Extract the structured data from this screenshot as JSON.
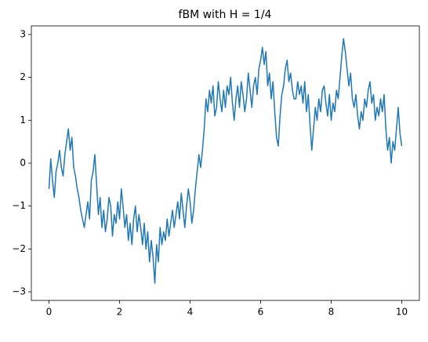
{
  "chart_data": {
    "type": "line",
    "title": "fBM with H = 1/4",
    "x": [
      0,
      0.05,
      0.1,
      0.15,
      0.2,
      0.25,
      0.3,
      0.35,
      0.4,
      0.45,
      0.5,
      0.55,
      0.6,
      0.65,
      0.7,
      0.75,
      0.8,
      0.85,
      0.9,
      0.95,
      1,
      1.05,
      1.1,
      1.15,
      1.2,
      1.25,
      1.3,
      1.35,
      1.4,
      1.45,
      1.5,
      1.55,
      1.6,
      1.65,
      1.7,
      1.75,
      1.8,
      1.85,
      1.9,
      1.95,
      2,
      2.05,
      2.1,
      2.15,
      2.2,
      2.25,
      2.3,
      2.35,
      2.4,
      2.45,
      2.5,
      2.55,
      2.6,
      2.65,
      2.7,
      2.75,
      2.8,
      2.85,
      2.9,
      2.95,
      3,
      3.05,
      3.1,
      3.15,
      3.2,
      3.25,
      3.3,
      3.35,
      3.4,
      3.45,
      3.5,
      3.55,
      3.6,
      3.65,
      3.7,
      3.75,
      3.8,
      3.85,
      3.9,
      3.95,
      4,
      4.05,
      4.1,
      4.15,
      4.2,
      4.25,
      4.3,
      4.35,
      4.4,
      4.45,
      4.5,
      4.55,
      4.6,
      4.65,
      4.7,
      4.75,
      4.8,
      4.85,
      4.9,
      4.95,
      5,
      5.05,
      5.1,
      5.15,
      5.2,
      5.25,
      5.3,
      5.35,
      5.4,
      5.45,
      5.5,
      5.55,
      5.6,
      5.65,
      5.7,
      5.75,
      5.8,
      5.85,
      5.9,
      5.95,
      6,
      6.05,
      6.1,
      6.15,
      6.2,
      6.25,
      6.3,
      6.35,
      6.4,
      6.45,
      6.5,
      6.55,
      6.6,
      6.65,
      6.7,
      6.75,
      6.8,
      6.85,
      6.9,
      6.95,
      7,
      7.05,
      7.1,
      7.15,
      7.2,
      7.25,
      7.3,
      7.35,
      7.4,
      7.45,
      7.5,
      7.55,
      7.6,
      7.65,
      7.7,
      7.75,
      7.8,
      7.85,
      7.9,
      7.95,
      8,
      8.05,
      8.1,
      8.15,
      8.2,
      8.25,
      8.3,
      8.35,
      8.4,
      8.45,
      8.5,
      8.55,
      8.6,
      8.65,
      8.7,
      8.75,
      8.8,
      8.85,
      8.9,
      8.95,
      9,
      9.05,
      9.1,
      9.15,
      9.2,
      9.25,
      9.3,
      9.35,
      9.4,
      9.45,
      9.5,
      9.55,
      9.6,
      9.65,
      9.7,
      9.75,
      9.8,
      9.85,
      9.9,
      9.95,
      10
    ],
    "series": [
      {
        "color": "#1f77b4",
        "values": [
          -0.6,
          0.1,
          -0.4,
          -0.8,
          -0.2,
          0.0,
          0.3,
          -0.1,
          -0.3,
          0.2,
          0.5,
          0.8,
          0.3,
          0.6,
          -0.1,
          -0.3,
          -0.6,
          -0.8,
          -1.1,
          -1.3,
          -1.5,
          -1.2,
          -0.9,
          -1.3,
          -0.4,
          -0.2,
          0.2,
          -0.5,
          -1.2,
          -0.8,
          -1.5,
          -1.1,
          -1.6,
          -1.3,
          -0.8,
          -1.0,
          -1.7,
          -1.2,
          -1.4,
          -0.9,
          -1.3,
          -0.6,
          -1.0,
          -1.5,
          -1.2,
          -1.8,
          -1.4,
          -1.9,
          -1.3,
          -1.0,
          -1.6,
          -1.2,
          -1.5,
          -1.9,
          -1.4,
          -2.0,
          -1.6,
          -2.3,
          -1.8,
          -2.2,
          -2.8,
          -1.9,
          -2.3,
          -1.5,
          -1.9,
          -1.6,
          -1.8,
          -1.3,
          -1.7,
          -1.4,
          -1.1,
          -1.5,
          -1.2,
          -0.9,
          -1.3,
          -0.7,
          -1.1,
          -1.5,
          -1.0,
          -0.6,
          -0.9,
          -1.4,
          -1.1,
          -0.6,
          -0.2,
          0.2,
          -0.1,
          0.3,
          0.8,
          1.5,
          1.2,
          1.7,
          1.4,
          1.8,
          1.1,
          1.3,
          1.9,
          1.5,
          1.2,
          1.7,
          1.3,
          1.8,
          1.6,
          2.0,
          1.4,
          1.0,
          1.5,
          1.8,
          1.3,
          1.9,
          1.6,
          1.2,
          1.5,
          2.1,
          1.7,
          1.3,
          1.8,
          2.0,
          1.6,
          2.2,
          2.4,
          2.7,
          2.3,
          2.6,
          1.8,
          2.1,
          1.5,
          1.9,
          1.2,
          0.6,
          0.4,
          1.1,
          1.6,
          1.8,
          2.2,
          2.4,
          1.9,
          2.1,
          1.7,
          1.5,
          1.5,
          1.9,
          1.6,
          1.8,
          1.4,
          1.9,
          1.2,
          1.6,
          0.9,
          0.3,
          0.8,
          1.3,
          1.0,
          1.5,
          1.2,
          1.7,
          1.8,
          1.4,
          1.1,
          1.6,
          1.0,
          1.4,
          1.2,
          1.7,
          1.5,
          2.0,
          2.5,
          2.9,
          2.6,
          2.2,
          1.8,
          2.1,
          1.5,
          1.3,
          1.6,
          1.1,
          0.8,
          1.2,
          1.0,
          1.5,
          1.3,
          1.7,
          1.9,
          1.4,
          1.6,
          1.0,
          1.3,
          1.1,
          1.5,
          1.2,
          1.6,
          0.8,
          0.3,
          0.6,
          0.0,
          0.5,
          0.3,
          0.8,
          1.3,
          0.7,
          0.4
        ]
      }
    ],
    "xlim": [
      -0.5,
      10.5
    ],
    "xticks": [
      0,
      2,
      4,
      6,
      8,
      10
    ],
    "ylim": [
      -3.2,
      3.2
    ],
    "yticks": [
      {
        "value": -3,
        "label": "−3"
      },
      {
        "value": -2,
        "label": "−2"
      },
      {
        "value": -1,
        "label": "−1"
      },
      0,
      1,
      2,
      3
    ]
  }
}
